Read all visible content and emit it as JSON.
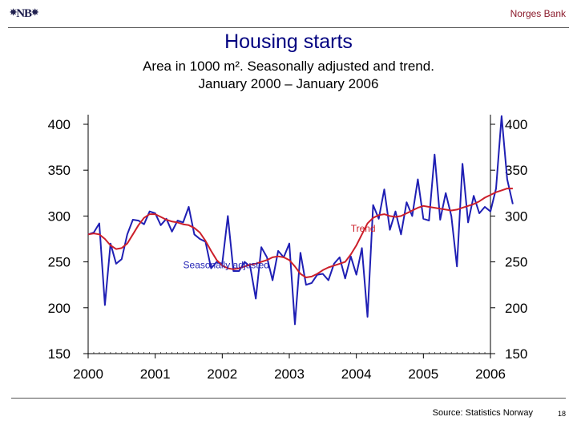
{
  "header": {
    "logo_text": "NB",
    "brand": "Norges Bank"
  },
  "footer": {
    "source": "Source: Statistics Norway",
    "page_number": "18"
  },
  "colors": {
    "seasonally_adjusted": "#1f1fb4",
    "trend": "#cc1f2a",
    "title": "#000080",
    "brand": "#8b1a2b"
  },
  "chart_data": {
    "type": "line",
    "title": "Housing starts",
    "subtitle": [
      "Area in 1000 m². Seasonally adjusted and trend.",
      "January 2000 – January 2006"
    ],
    "xlabel": "",
    "ylabel": "",
    "x_start": "2000-01",
    "x_step": "month",
    "xticks": [
      "2000",
      "2001",
      "2002",
      "2003",
      "2004",
      "2005",
      "2006"
    ],
    "ylim": [
      150,
      400
    ],
    "yticks": [
      150,
      200,
      250,
      300,
      350,
      400
    ],
    "grid": false,
    "annotations": [
      {
        "text": "Trend",
        "series": "Trend",
        "x": "2003-12",
        "y": 283
      },
      {
        "text": "Seasonally adjusted",
        "series": "Seasonally adjusted",
        "x": "2001-06",
        "y": 243
      }
    ],
    "series": [
      {
        "name": "Seasonally adjusted",
        "values": [
          280,
          282,
          292,
          203,
          270,
          248,
          253,
          280,
          296,
          295,
          291,
          305,
          303,
          290,
          297,
          283,
          295,
          293,
          310,
          280,
          275,
          272,
          243,
          250,
          248,
          300,
          240,
          240,
          250,
          245,
          210,
          266,
          255,
          230,
          262,
          255,
          270,
          182,
          260,
          225,
          227,
          236,
          237,
          230,
          248,
          255,
          232,
          256,
          236,
          265,
          190,
          312,
          297,
          329,
          285,
          305,
          280,
          315,
          300,
          340,
          297,
          295,
          367,
          296,
          325,
          300,
          245,
          357,
          293,
          322,
          303,
          310,
          305,
          330,
          409,
          340,
          313
        ],
        "draw_values": [
          280,
          282,
          292,
          203,
          270,
          248,
          253,
          280,
          296,
          295,
          291,
          305,
          303,
          290,
          297,
          283,
          295,
          293,
          310,
          280,
          275,
          272,
          243,
          250,
          248,
          300,
          240,
          240,
          250,
          245,
          210,
          266,
          255,
          230,
          262,
          255,
          270,
          182,
          260,
          225,
          227,
          236,
          237,
          230,
          248,
          255,
          232,
          256,
          236,
          265,
          190,
          312,
          297,
          329,
          285,
          305,
          280,
          315,
          300,
          340,
          297,
          295,
          367,
          296,
          325,
          300,
          245,
          357,
          293,
          322,
          303,
          310,
          305,
          330,
          409,
          340,
          313
        ]
      },
      {
        "name": "Trend",
        "values": [
          280,
          281,
          280,
          275,
          268,
          264,
          265,
          270,
          280,
          290,
          298,
          302,
          302,
          299,
          296,
          294,
          293,
          291,
          290,
          287,
          282,
          273,
          262,
          252,
          246,
          243,
          242,
          243,
          245,
          247,
          248,
          250,
          252,
          255,
          256,
          255,
          252,
          245,
          237,
          233,
          234,
          237,
          241,
          244,
          246,
          248,
          250,
          258,
          268,
          280,
          292,
          298,
          301,
          302,
          300,
          299,
          300,
          303,
          306,
          309,
          311,
          310,
          309,
          308,
          307,
          306,
          307,
          309,
          311,
          313,
          316,
          320,
          323,
          326,
          328,
          330,
          330
        ]
      }
    ]
  }
}
